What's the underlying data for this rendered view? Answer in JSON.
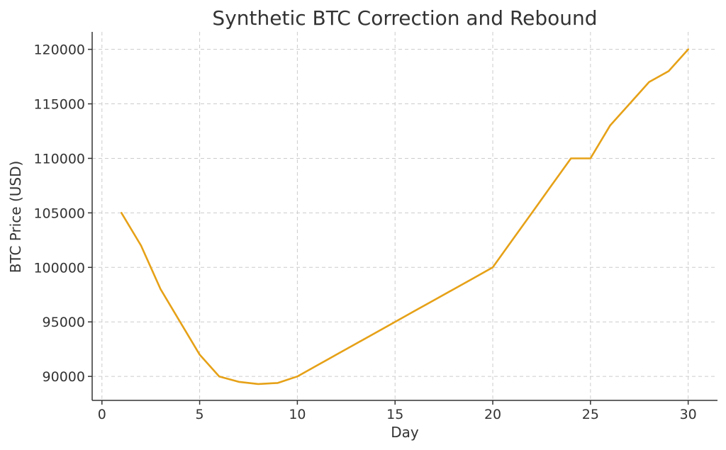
{
  "chart_data": {
    "type": "line",
    "title": "Synthetic BTC Correction and Rebound",
    "xlabel": "Day",
    "ylabel": "BTC Price (USD)",
    "xlim": [
      -0.5,
      31.5
    ],
    "ylim": [
      87800,
      121600
    ],
    "xticks": [
      0,
      5,
      10,
      15,
      20,
      25,
      30
    ],
    "yticks": [
      90000,
      95000,
      100000,
      105000,
      110000,
      115000,
      120000
    ],
    "grid": true,
    "series": [
      {
        "color": "#e6a117",
        "x": [
          1,
          2,
          3,
          4,
          5,
          6,
          7,
          8,
          9,
          10,
          11,
          12,
          13,
          14,
          15,
          16,
          17,
          18,
          19,
          20,
          21,
          22,
          23,
          24,
          25,
          26,
          27,
          28,
          29,
          30
        ],
        "y": [
          105000,
          102000,
          98000,
          95000,
          92000,
          90000,
          89500,
          89300,
          89400,
          90000,
          91000,
          92000,
          93000,
          94000,
          95000,
          96000,
          97000,
          98000,
          99000,
          100000,
          102500,
          105000,
          107500,
          110000,
          110000,
          113000,
          115000,
          117000,
          118000,
          120000
        ]
      }
    ]
  }
}
